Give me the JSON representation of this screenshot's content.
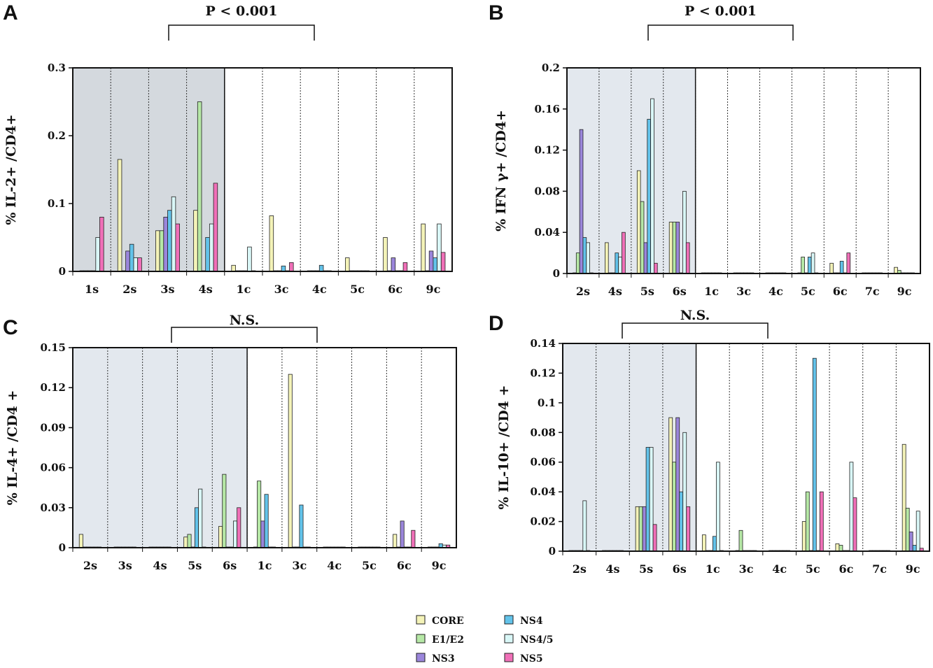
{
  "legend": [
    {
      "name": "CORE",
      "color": "#f4f3b8"
    },
    {
      "name": "E1/E2",
      "color": "#b6e8a6"
    },
    {
      "name": "NS3",
      "color": "#9b86db"
    },
    {
      "name": "NS4",
      "color": "#63c3ea"
    },
    {
      "name": "NS4/5",
      "color": "#d9f7f7"
    },
    {
      "name": "NS5",
      "color": "#f070b8"
    }
  ],
  "chart_data": [
    {
      "panel": "A",
      "type": "bar",
      "ylabel": "% IL-2+ /CD4+",
      "ylim": [
        0,
        0.3
      ],
      "yticks": [
        "0",
        "0.1",
        "0.2",
        "0.3"
      ],
      "shaded_groups": 4,
      "significance": {
        "label": "P < 0.001"
      },
      "categories": [
        "1s",
        "2s",
        "3s",
        "4s",
        "1c",
        "3c",
        "4c",
        "5c",
        "6c",
        "9c"
      ],
      "series": [
        {
          "name": "CORE",
          "values": [
            0.0,
            0.165,
            0.06,
            0.09,
            0.009,
            0.082,
            0.0,
            0.02,
            0.05,
            0.07
          ]
        },
        {
          "name": "E1/E2",
          "values": [
            0.0,
            0.0,
            0.06,
            0.25,
            0.0,
            0.0,
            0.0,
            0.0,
            0.0,
            0.0
          ]
        },
        {
          "name": "NS3",
          "values": [
            0.0,
            0.03,
            0.08,
            0.0,
            0.0,
            0.0,
            0.0,
            0.0,
            0.02,
            0.03
          ]
        },
        {
          "name": "NS4",
          "values": [
            0.0,
            0.04,
            0.09,
            0.05,
            0.0,
            0.008,
            0.009,
            0.0,
            0.0,
            0.02
          ]
        },
        {
          "name": "NS4/5",
          "values": [
            0.05,
            0.02,
            0.11,
            0.07,
            0.036,
            0.0,
            0.0,
            0.0,
            0.0,
            0.07
          ]
        },
        {
          "name": "NS5",
          "values": [
            0.08,
            0.02,
            0.07,
            0.13,
            0.0,
            0.013,
            0.0,
            0.0,
            0.013,
            0.028
          ]
        }
      ]
    },
    {
      "panel": "B",
      "type": "bar",
      "ylabel": "% IFN γ+ /CD4+",
      "ylim": [
        0,
        0.2
      ],
      "yticks": [
        "0",
        "0.04",
        "0.08",
        "0.12",
        "0.16",
        "0.2"
      ],
      "shaded_groups": 4,
      "significance": {
        "label": "P < 0.001"
      },
      "categories": [
        "2s",
        "4s",
        "5s",
        "6s",
        "1c",
        "3c",
        "4c",
        "5c",
        "6c",
        "7c",
        "9c"
      ],
      "series": [
        {
          "name": "CORE",
          "values": [
            0.0,
            0.03,
            0.1,
            0.05,
            0.0,
            0.0,
            0.0,
            0.0,
            0.01,
            0.0,
            0.006
          ]
        },
        {
          "name": "E1/E2",
          "values": [
            0.02,
            0.0,
            0.07,
            0.05,
            0.0,
            0.0,
            0.0,
            0.016,
            0.0,
            0.0,
            0.003
          ]
        },
        {
          "name": "NS3",
          "values": [
            0.14,
            0.0,
            0.03,
            0.05,
            0.0,
            0.0,
            0.0,
            0.0,
            0.0,
            0.0,
            0.0
          ]
        },
        {
          "name": "NS4",
          "values": [
            0.035,
            0.02,
            0.15,
            0.0,
            0.0,
            0.0,
            0.0,
            0.016,
            0.012,
            0.0,
            0.0
          ]
        },
        {
          "name": "NS4/5",
          "values": [
            0.03,
            0.016,
            0.17,
            0.08,
            0.0,
            0.0,
            0.0,
            0.02,
            0.0,
            0.0,
            0.0
          ]
        },
        {
          "name": "NS5",
          "values": [
            0.0,
            0.04,
            0.01,
            0.03,
            0.0,
            0.0,
            0.0,
            0.0,
            0.02,
            0.0,
            0.0
          ]
        }
      ]
    },
    {
      "panel": "C",
      "type": "bar",
      "ylabel": "% IL-4+ /CD4 +",
      "ylim": [
        0,
        0.15
      ],
      "yticks": [
        "0",
        "0.03",
        "0.06",
        "0.09",
        "0.12",
        "0.15"
      ],
      "shaded_groups": 5,
      "significance": {
        "label": "N.S."
      },
      "categories": [
        "2s",
        "3s",
        "4s",
        "5s",
        "6s",
        "1c",
        "3c",
        "4c",
        "5c",
        "6c",
        "9c"
      ],
      "series": [
        {
          "name": "CORE",
          "values": [
            0.01,
            0.0,
            0.0,
            0.008,
            0.016,
            0.0,
            0.13,
            0.0,
            0.0,
            0.01,
            0.0
          ]
        },
        {
          "name": "E1/E2",
          "values": [
            0.0,
            0.0,
            0.0,
            0.01,
            0.055,
            0.05,
            0.0,
            0.0,
            0.0,
            0.0,
            0.0
          ]
        },
        {
          "name": "NS3",
          "values": [
            0.0,
            0.0,
            0.0,
            0.0,
            0.0,
            0.02,
            0.0,
            0.0,
            0.0,
            0.02,
            0.0
          ]
        },
        {
          "name": "NS4",
          "values": [
            0.0,
            0.0,
            0.0,
            0.03,
            0.0,
            0.04,
            0.032,
            0.0,
            0.0,
            0.0,
            0.003
          ]
        },
        {
          "name": "NS4/5",
          "values": [
            0.0,
            0.0,
            0.0,
            0.044,
            0.02,
            0.0,
            0.0,
            0.0,
            0.0,
            0.0,
            0.002
          ]
        },
        {
          "name": "NS5",
          "values": [
            0.0,
            0.0,
            0.0,
            0.0,
            0.03,
            0.0,
            0.0,
            0.0,
            0.0,
            0.013,
            0.002
          ]
        }
      ]
    },
    {
      "panel": "D",
      "type": "bar",
      "ylabel": "% IL-10+ /CD4 +",
      "ylim": [
        0,
        0.14
      ],
      "yticks": [
        "0",
        "0.02",
        "0.04",
        "0.06",
        "0.08",
        "0.1",
        "0.12",
        "0.14"
      ],
      "shaded_groups": 4,
      "significance": {
        "label": "N.S."
      },
      "categories": [
        "2s",
        "4s",
        "5s",
        "6s",
        "1c",
        "3c",
        "4c",
        "5c",
        "6c",
        "7c",
        "9c"
      ],
      "series": [
        {
          "name": "CORE",
          "values": [
            0.0,
            0.0,
            0.03,
            0.09,
            0.011,
            0.0,
            0.0,
            0.02,
            0.005,
            0.0,
            0.072
          ]
        },
        {
          "name": "E1/E2",
          "values": [
            0.0,
            0.0,
            0.03,
            0.06,
            0.0,
            0.014,
            0.0,
            0.04,
            0.004,
            0.0,
            0.029
          ]
        },
        {
          "name": "NS3",
          "values": [
            0.0,
            0.0,
            0.03,
            0.09,
            0.0,
            0.0,
            0.0,
            0.0,
            0.0,
            0.0,
            0.013
          ]
        },
        {
          "name": "NS4",
          "values": [
            0.0,
            0.0,
            0.07,
            0.04,
            0.01,
            0.0,
            0.0,
            0.13,
            0.0,
            0.0,
            0.004
          ]
        },
        {
          "name": "NS4/5",
          "values": [
            0.034,
            0.0,
            0.07,
            0.08,
            0.06,
            0.0,
            0.0,
            0.0,
            0.06,
            0.0,
            0.027
          ]
        },
        {
          "name": "NS5",
          "values": [
            0.0,
            0.0,
            0.018,
            0.03,
            0.0,
            0.0,
            0.0,
            0.04,
            0.036,
            0.0,
            0.002
          ]
        }
      ]
    }
  ]
}
